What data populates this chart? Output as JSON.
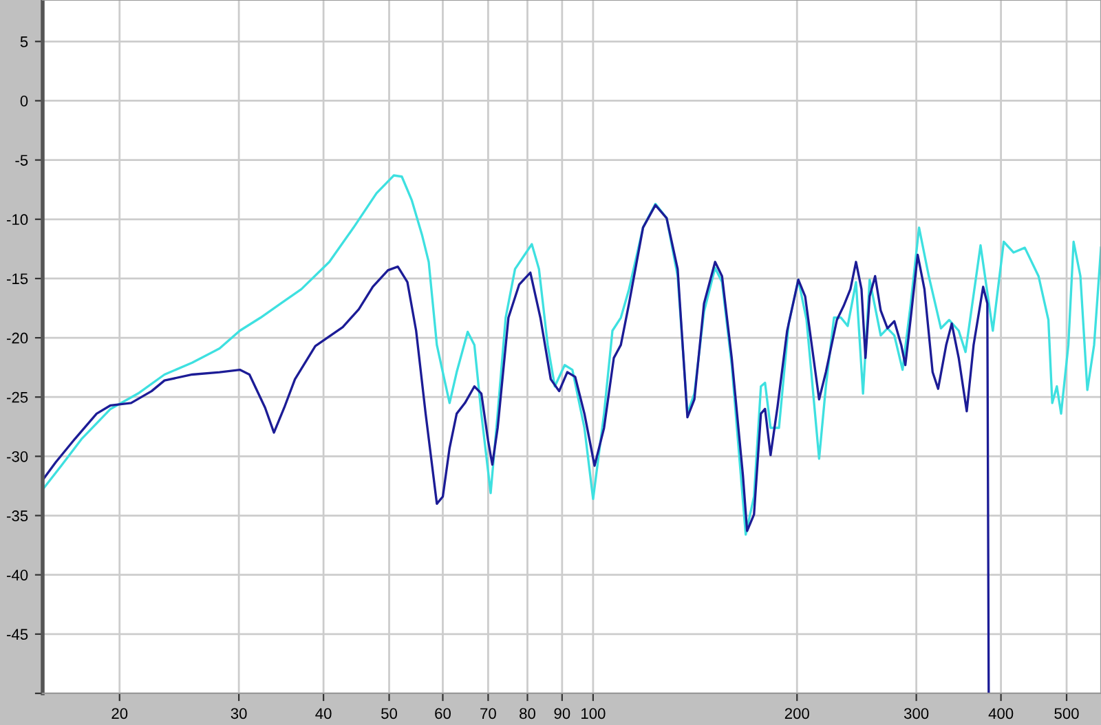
{
  "chart_data": {
    "type": "line",
    "log": "x",
    "grid": true,
    "legend": false,
    "marker": "none",
    "line_style": "solid",
    "xlim": [
      15.4,
      562
    ],
    "ylim": [
      -50,
      8.5
    ],
    "xticks": [
      20,
      30,
      40,
      50,
      60,
      70,
      80,
      90,
      100,
      200,
      300,
      400,
      500
    ],
    "yticks": [
      5,
      0,
      -5,
      -10,
      -15,
      -20,
      -25,
      -30,
      -35,
      -40,
      -45,
      {
        "value": -50,
        "label": null
      }
    ],
    "series": [
      {
        "color": "#3ee0e0",
        "x": [
          15.4,
          16.4,
          17.6,
          19.4,
          21.3,
          23.3,
          25.6,
          28.1,
          30.1,
          32.3,
          34.6,
          37.1,
          40.8,
          44.3,
          47.9,
          50.8,
          52.2,
          54.0,
          55.9,
          57.2,
          58.8,
          60,
          61.4,
          62.9,
          65.3,
          66.8,
          68.4,
          70.6,
          72.3,
          74.3,
          76.7,
          81.2,
          83.2,
          85.7,
          87.8,
          90.8,
          93.2,
          97.1,
          100,
          103.8,
          106.8,
          109.9,
          113.0,
          118.5,
          123.6,
          128.4,
          133.3,
          137.8,
          141.1,
          145.8,
          151.4,
          155.0,
          160.2,
          168.0,
          172.8,
          176.9,
          179.4,
          182.8,
          188.1,
          194.4,
          200.9,
          206.6,
          215.6,
          220.6,
          226.8,
          232.2,
          237.6,
          244.4,
          250.3,
          256.0,
          265.8,
          272.0,
          278.4,
          286.3,
          294.4,
          302.8,
          313.0,
          326.2,
          335.4,
          346.5,
          354.6,
          373.2,
          389.1,
          403.8,
          417.6,
          433.8,
          454.5,
          470.0,
          476.2,
          483.7,
          490.7,
          503,
          512.0,
          524.0,
          536.5,
          549.0,
          562
        ],
        "values": [
          -32.8,
          -30.8,
          -28.5,
          -26,
          -24.7,
          -23.1,
          -22.1,
          -20.9,
          -19.4,
          -18.3,
          -17.1,
          -15.9,
          -13.6,
          -10.7,
          -7.8,
          -6.3,
          -6.4,
          -8.4,
          -11.3,
          -13.6,
          -20.6,
          -22.9,
          -25.5,
          -22.9,
          -19.5,
          -20.6,
          -26.4,
          -33.1,
          -26.4,
          -18.3,
          -14.2,
          -12.1,
          -14.2,
          -20.6,
          -24.1,
          -22.3,
          -22.7,
          -27.6,
          -33.6,
          -26.4,
          -19.4,
          -18.3,
          -15.9,
          -10.7,
          -8.7,
          -9.9,
          -14.8,
          -26.4,
          -24.7,
          -17.8,
          -14.1,
          -15.3,
          -22.3,
          -36.6,
          -33.4,
          -24.1,
          -23.8,
          -27.6,
          -27.6,
          -18.8,
          -15.1,
          -18.5,
          -30.2,
          -24.1,
          -18.3,
          -18.3,
          -19.0,
          -15.3,
          -24.7,
          -15.1,
          -19.8,
          -19.2,
          -19.8,
          -22.7,
          -17.1,
          -10.7,
          -14.8,
          -19.2,
          -18.5,
          -19.4,
          -21.2,
          -12.2,
          -19.4,
          -11.9,
          -12.8,
          -12.4,
          -14.8,
          -18.5,
          -25.5,
          -24.1,
          -26.4,
          -20.6,
          -11.9,
          -14.8,
          -24.4,
          -20.6,
          -12.4
        ]
      },
      {
        "color": "#1c1c96",
        "x": [
          15.4,
          16.1,
          17.2,
          18.5,
          19.4,
          20.8,
          22.3,
          23.3,
          25.6,
          28.1,
          30.1,
          31.1,
          32.8,
          33.8,
          35.0,
          36.3,
          38.9,
          42.7,
          45.1,
          47.3,
          49.8,
          51.5,
          53.2,
          54.8,
          56.6,
          58.8,
          60,
          61.4,
          62.9,
          64.7,
          66.8,
          68.4,
          70,
          71.0,
          72.3,
          75.0,
          77.8,
          80.8,
          83.6,
          86.6,
          89.1,
          91.6,
          94.1,
          97.1,
          100.5,
          103.8,
          107.3,
          109.9,
          113.0,
          118.5,
          123.6,
          128.4,
          133.3,
          137.8,
          141.1,
          145.8,
          151.4,
          155.0,
          160.2,
          166.4,
          168.8,
          172.8,
          176.9,
          179.4,
          182.8,
          187.2,
          193.4,
          200.9,
          205.6,
          215.6,
          220.6,
          229.0,
          234.4,
          239.8,
          244.4,
          249.0,
          252.4,
          256.0,
          260.8,
          265.8,
          272.0,
          278.4,
          285.0,
          289.0,
          294.4,
          301.4,
          308.4,
          317.1,
          323.1,
          332.1,
          338.4,
          346.5,
          356.1,
          364.5,
          376.5,
          381.9,
          383.7
        ],
        "values": [
          -32,
          -30.5,
          -28.5,
          -26.4,
          -25.7,
          -25.5,
          -24.5,
          -23.6,
          -23.1,
          -22.9,
          -22.7,
          -23.1,
          -25.9,
          -28,
          -25.9,
          -23.5,
          -20.7,
          -19.1,
          -17.6,
          -15.7,
          -14.3,
          -14.0,
          -15.3,
          -19.4,
          -26.4,
          -34,
          -33.4,
          -29.3,
          -26.4,
          -25.5,
          -24.1,
          -24.7,
          -28.7,
          -30.7,
          -27.6,
          -18.3,
          -15.5,
          -14.5,
          -18.3,
          -23.5,
          -24.5,
          -22.9,
          -23.3,
          -26.4,
          -30.8,
          -27.6,
          -21.7,
          -20.6,
          -17.1,
          -10.7,
          -8.8,
          -9.9,
          -14.2,
          -26.7,
          -25.2,
          -17.1,
          -13.6,
          -14.8,
          -21.7,
          -31.6,
          -36.3,
          -34.9,
          -26.4,
          -26,
          -29.9,
          -25.8,
          -19.4,
          -15.1,
          -16.5,
          -25.2,
          -22.9,
          -18.5,
          -17.3,
          -15.9,
          -13.6,
          -15.9,
          -21.7,
          -16.5,
          -14.8,
          -17.7,
          -19.2,
          -18.6,
          -20.6,
          -22.3,
          -18.3,
          -13.0,
          -15.9,
          -22.9,
          -24.3,
          -20.6,
          -18.8,
          -21.7,
          -26.2,
          -20.6,
          -15.7,
          -17.1,
          -50
        ]
      }
    ]
  }
}
